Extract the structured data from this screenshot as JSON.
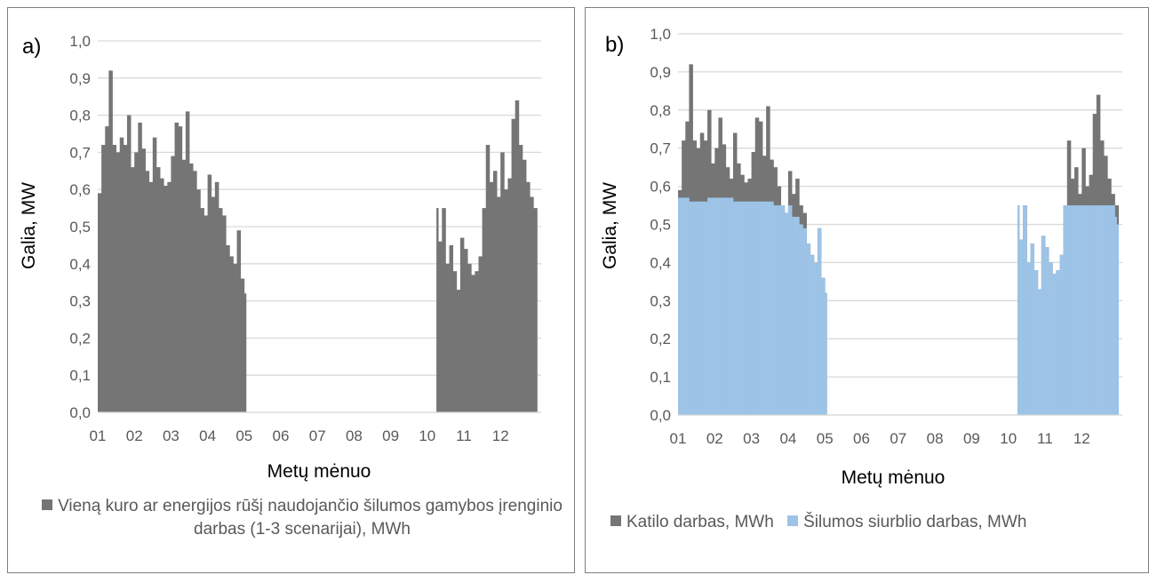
{
  "panels": [
    {
      "label": "a)",
      "legend": [
        "Vieną kuro ar energijos rūšį naudojančio šilumos gamybos įrenginio darbas (1-3 scenarijai), MWh"
      ]
    },
    {
      "label": "b)",
      "legend": [
        "Katilo darbas, MWh",
        "Šilumos siurblio darbas, MWh"
      ]
    }
  ],
  "chart_data": [
    {
      "type": "area",
      "xlabel": "Metų mėnuo",
      "ylabel": "Galia, MW",
      "ylim": [
        0,
        1.0
      ],
      "y_ticks": [
        "0,0",
        "0,1",
        "0,2",
        "0,3",
        "0,4",
        "0,5",
        "0,6",
        "0,7",
        "0,8",
        "0,9",
        "1,0"
      ],
      "x_ticks": [
        "01",
        "02",
        "03",
        "04",
        "05",
        "06",
        "07",
        "08",
        "09",
        "10",
        "11",
        "12"
      ],
      "grid": true,
      "legend_position": "bottom",
      "x_unit": "month",
      "series": [
        {
          "name": "Vieną kuro ar energijos rūšį naudojančio šilumos gamybos įrenginio darbas (1-3 scenarijai), MWh",
          "color": "#757575",
          "x": [
            1.0,
            1.1,
            1.2,
            1.3,
            1.4,
            1.5,
            1.6,
            1.7,
            1.8,
            1.9,
            2.0,
            2.1,
            2.2,
            2.3,
            2.4,
            2.5,
            2.6,
            2.7,
            2.8,
            2.9,
            3.0,
            3.1,
            3.2,
            3.3,
            3.4,
            3.5,
            3.6,
            3.7,
            3.8,
            3.9,
            4.0,
            4.1,
            4.2,
            4.3,
            4.4,
            4.5,
            4.6,
            4.7,
            4.8,
            4.9,
            5.0,
            5.05,
            10.25,
            10.3,
            10.4,
            10.5,
            10.6,
            10.7,
            10.8,
            10.9,
            11.0,
            11.1,
            11.2,
            11.3,
            11.4,
            11.5,
            11.6,
            11.7,
            11.8,
            11.9,
            12.0,
            12.1,
            12.2,
            12.3,
            12.4,
            12.5,
            12.6,
            12.7,
            12.8,
            12.9,
            12.95
          ],
          "y": [
            0.59,
            0.72,
            0.77,
            0.92,
            0.72,
            0.7,
            0.74,
            0.72,
            0.8,
            0.66,
            0.7,
            0.78,
            0.71,
            0.65,
            0.62,
            0.74,
            0.66,
            0.63,
            0.61,
            0.62,
            0.69,
            0.78,
            0.77,
            0.68,
            0.81,
            0.67,
            0.65,
            0.6,
            0.55,
            0.53,
            0.64,
            0.58,
            0.62,
            0.55,
            0.53,
            0.45,
            0.42,
            0.4,
            0.49,
            0.36,
            0.32,
            0.24,
            0.55,
            0.46,
            0.55,
            0.4,
            0.45,
            0.38,
            0.33,
            0.47,
            0.44,
            0.4,
            0.37,
            0.38,
            0.42,
            0.55,
            0.72,
            0.62,
            0.65,
            0.58,
            0.7,
            0.6,
            0.63,
            0.79,
            0.84,
            0.72,
            0.68,
            0.62,
            0.58,
            0.55,
            0.55
          ]
        }
      ]
    },
    {
      "type": "area",
      "xlabel": "Metų mėnuo",
      "ylabel": "Galia, MW",
      "ylim": [
        0,
        1.0
      ],
      "y_ticks": [
        "0,0",
        "0,1",
        "0,2",
        "0,3",
        "0,4",
        "0,5",
        "0,6",
        "0,7",
        "0,8",
        "0,9",
        "1,0"
      ],
      "x_ticks": [
        "01",
        "02",
        "03",
        "04",
        "05",
        "06",
        "07",
        "08",
        "09",
        "10",
        "11",
        "12"
      ],
      "grid": true,
      "legend_position": "bottom",
      "x_unit": "month",
      "series": [
        {
          "name": "Katilo darbas, MWh",
          "color": "#757575",
          "x": [
            1.0,
            1.1,
            1.2,
            1.3,
            1.4,
            1.5,
            1.6,
            1.7,
            1.8,
            1.9,
            2.0,
            2.1,
            2.2,
            2.3,
            2.4,
            2.5,
            2.6,
            2.7,
            2.8,
            2.9,
            3.0,
            3.1,
            3.2,
            3.3,
            3.4,
            3.5,
            3.6,
            3.7,
            3.8,
            3.9,
            4.0,
            4.1,
            4.2,
            4.3,
            4.4,
            4.5,
            4.6,
            4.7,
            4.8,
            4.9,
            5.0,
            5.05,
            10.25,
            10.3,
            10.4,
            10.5,
            10.6,
            10.7,
            10.8,
            10.9,
            11.0,
            11.1,
            11.2,
            11.3,
            11.4,
            11.5,
            11.6,
            11.7,
            11.8,
            11.9,
            12.0,
            12.1,
            12.2,
            12.3,
            12.4,
            12.5,
            12.6,
            12.7,
            12.8,
            12.9,
            12.95
          ],
          "y": [
            0.59,
            0.72,
            0.77,
            0.92,
            0.72,
            0.7,
            0.74,
            0.72,
            0.8,
            0.66,
            0.7,
            0.78,
            0.71,
            0.65,
            0.62,
            0.74,
            0.66,
            0.63,
            0.61,
            0.62,
            0.69,
            0.78,
            0.77,
            0.68,
            0.81,
            0.67,
            0.65,
            0.6,
            0.55,
            0.53,
            0.64,
            0.58,
            0.62,
            0.55,
            0.53,
            0.45,
            0.42,
            0.4,
            0.49,
            0.36,
            0.32,
            0.24,
            0.55,
            0.46,
            0.55,
            0.4,
            0.45,
            0.38,
            0.33,
            0.47,
            0.44,
            0.4,
            0.37,
            0.38,
            0.42,
            0.55,
            0.72,
            0.62,
            0.65,
            0.58,
            0.7,
            0.6,
            0.63,
            0.79,
            0.84,
            0.72,
            0.68,
            0.62,
            0.58,
            0.55,
            0.55
          ]
        },
        {
          "name": "Šilumos siurblio darbas, MWh",
          "color": "#9dc3e6",
          "x": [
            1.0,
            1.1,
            1.2,
            1.3,
            1.4,
            1.5,
            1.6,
            1.7,
            1.8,
            1.9,
            2.0,
            2.1,
            2.2,
            2.3,
            2.4,
            2.5,
            2.6,
            2.7,
            2.8,
            2.9,
            3.0,
            3.1,
            3.2,
            3.3,
            3.4,
            3.5,
            3.6,
            3.7,
            3.8,
            3.9,
            4.0,
            4.1,
            4.2,
            4.3,
            4.4,
            4.5,
            4.6,
            4.7,
            4.8,
            4.9,
            5.0,
            5.05,
            10.25,
            10.3,
            10.4,
            10.5,
            10.6,
            10.7,
            10.8,
            10.9,
            11.0,
            11.1,
            11.2,
            11.3,
            11.4,
            11.5,
            11.6,
            11.7,
            11.8,
            11.9,
            12.0,
            12.1,
            12.2,
            12.3,
            12.4,
            12.5,
            12.6,
            12.7,
            12.8,
            12.9,
            12.95
          ],
          "y": [
            0.57,
            0.57,
            0.57,
            0.56,
            0.56,
            0.56,
            0.56,
            0.56,
            0.57,
            0.57,
            0.57,
            0.57,
            0.57,
            0.57,
            0.57,
            0.56,
            0.56,
            0.56,
            0.56,
            0.56,
            0.56,
            0.56,
            0.56,
            0.56,
            0.56,
            0.56,
            0.55,
            0.55,
            0.55,
            0.53,
            0.55,
            0.52,
            0.52,
            0.5,
            0.49,
            0.45,
            0.42,
            0.4,
            0.49,
            0.36,
            0.32,
            0.24,
            0.55,
            0.46,
            0.55,
            0.4,
            0.45,
            0.38,
            0.33,
            0.47,
            0.44,
            0.4,
            0.37,
            0.38,
            0.42,
            0.55,
            0.55,
            0.55,
            0.55,
            0.55,
            0.55,
            0.55,
            0.55,
            0.55,
            0.55,
            0.55,
            0.55,
            0.55,
            0.55,
            0.52,
            0.5
          ]
        }
      ]
    }
  ]
}
